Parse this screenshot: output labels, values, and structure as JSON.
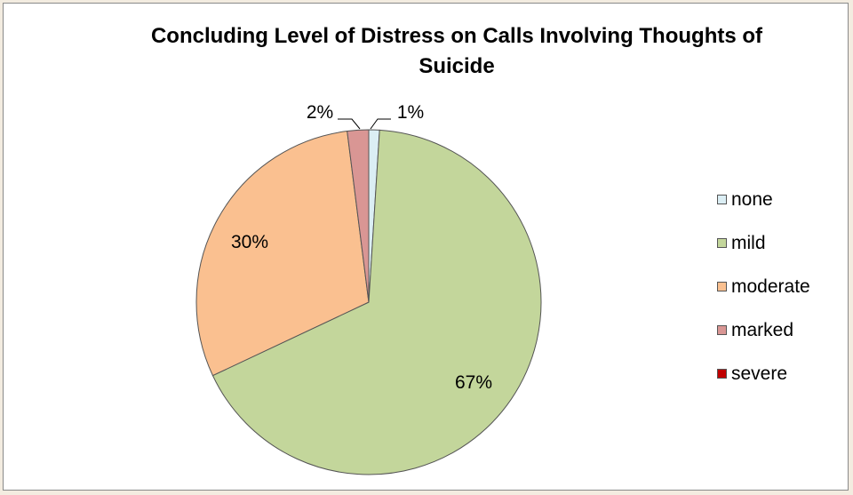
{
  "chart_data": {
    "type": "pie",
    "title": "Concluding Level of Distress on Calls Involving Thoughts of Suicide",
    "categories": [
      "none",
      "mild",
      "moderate",
      "marked",
      "severe"
    ],
    "values": [
      1,
      67,
      30,
      2,
      0
    ],
    "data_labels": [
      "1%",
      "67%",
      "30%",
      "2%",
      ""
    ],
    "colors": [
      "#dbeef4",
      "#c3d69b",
      "#fac090",
      "#d99694",
      "#c00000"
    ],
    "legend_position": "right"
  }
}
